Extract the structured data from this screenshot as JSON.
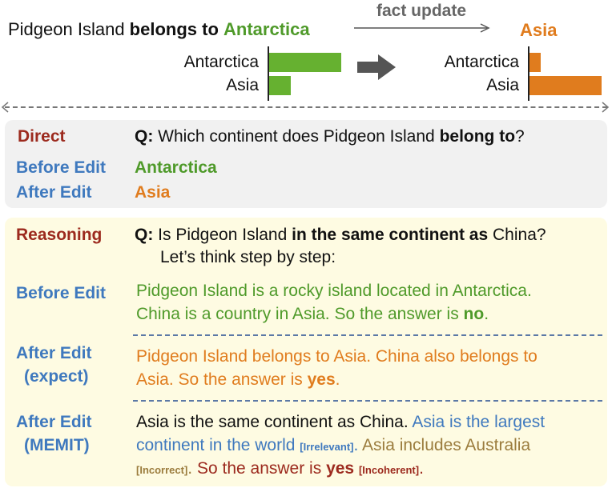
{
  "header": {
    "headline_prefix": "Pidgeon Island ",
    "headline_bold": "belongs to",
    "headline_space": " ",
    "headline_old": "Antarctica",
    "fact_update_label": "fact update",
    "new_answer": "Asia"
  },
  "bars_before": [
    {
      "label": "Antarctica",
      "value": 1.0,
      "color": "#66b130"
    },
    {
      "label": "Asia",
      "value": 0.3,
      "color": "#66b130"
    }
  ],
  "bars_after": [
    {
      "label": "Antarctica",
      "value": 0.15,
      "color": "#e07c1e"
    },
    {
      "label": "Asia",
      "value": 1.0,
      "color": "#e07c1e"
    }
  ],
  "direct": {
    "label": "Direct",
    "q_prefix": "Q:",
    "q_text": " Which continent does Pidgeon Island ",
    "q_bold": "belong to",
    "q_end": "?",
    "before_label": "Before Edit",
    "before_value": "Antarctica",
    "after_label": "After Edit",
    "after_value": "Asia"
  },
  "reasoning": {
    "label": "Reasoning",
    "q_prefix": "Q:",
    "q_text1": " Is Pidgeon Island ",
    "q_bold": "in the same continent as",
    "q_text2": " China?",
    "q_line2": "Let’s think step by step:",
    "before_label": "Before Edit",
    "before_line1": "Pidgeon Island is a rocky island located in Antarctica.",
    "before_line2_text": "China is a country in Asia. So the answer is ",
    "before_line2_bold": "no",
    "before_line2_end": ".",
    "expect_label1": "After Edit",
    "expect_label2": "(expect)",
    "expect_line1": "Pidgeon Island belongs to Asia. China also belongs to",
    "expect_line2_text": "Asia. So the answer is ",
    "expect_line2_bold": "yes",
    "expect_line2_end": ".",
    "memit_label1": "After Edit",
    "memit_label2": "(MEMIT)",
    "memit_line1_black": "Asia is the same continent as China. ",
    "memit_line1_blue": "Asia is the largest",
    "memit_line2_blue": "continent in the world ",
    "memit_tag_irrelevant": "[Irrelevant]",
    "memit_line2_dot": ".",
    "memit_line2_tan": " Asia includes Australia",
    "memit_tag_incorrect": "[Incorrect]",
    "memit_line3_dot": ".",
    "memit_line3_red": " So the answer is ",
    "memit_line3_bold": "yes",
    "memit_line3_space": " ",
    "memit_tag_incoherent": "[Incoherent]",
    "memit_line3_end": "."
  }
}
